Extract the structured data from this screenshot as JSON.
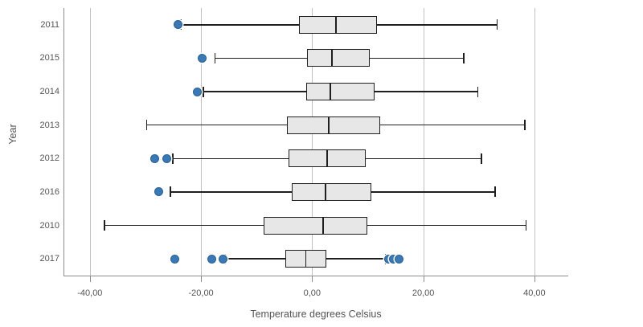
{
  "chart_data": {
    "type": "boxplot",
    "orientation": "horizontal",
    "title": "",
    "xlabel": "Temperature degrees Celsius",
    "ylabel": "Year",
    "grid": true,
    "xlim": [
      -44.7,
      46.1
    ],
    "x_ticks": [
      {
        "value": -40,
        "label": "-40,00"
      },
      {
        "value": -20,
        "label": "-20,00"
      },
      {
        "value": 0,
        "label": "0,00"
      },
      {
        "value": 20,
        "label": "20,00"
      },
      {
        "value": 40,
        "label": "40,00"
      }
    ],
    "categories": [
      "2011",
      "2015",
      "2014",
      "2013",
      "2012",
      "2016",
      "2010",
      "2017"
    ],
    "series": [
      {
        "category": "2011",
        "low": -23.6,
        "q1": -2.4,
        "median": 4.3,
        "q3": 11.7,
        "high": 33.3,
        "outliers": [
          -24.1
        ]
      },
      {
        "category": "2015",
        "low": -17.5,
        "q1": -0.9,
        "median": 3.6,
        "q3": 10.3,
        "high": 27.3,
        "outliers": [
          -19.8
        ]
      },
      {
        "category": "2014",
        "low": -19.6,
        "q1": -1.1,
        "median": 3.3,
        "q3": 11.2,
        "high": 29.8,
        "outliers": [
          -20.6
        ]
      },
      {
        "category": "2013",
        "low": -29.8,
        "q1": -4.5,
        "median": 3.0,
        "q3": 12.3,
        "high": 38.3,
        "outliers": []
      },
      {
        "category": "2012",
        "low": -25.1,
        "q1": -4.2,
        "median": 2.7,
        "q3": 9.7,
        "high": 30.5,
        "outliers": [
          -28.3,
          -26.1
        ]
      },
      {
        "category": "2016",
        "low": -25.5,
        "q1": -3.7,
        "median": 2.4,
        "q3": 10.7,
        "high": 32.9,
        "outliers": [
          -27.6
        ]
      },
      {
        "category": "2010",
        "low": -37.4,
        "q1": -8.8,
        "median": 2.0,
        "q3": 10.0,
        "high": 38.5,
        "outliers": []
      },
      {
        "category": "2017",
        "low": -15.7,
        "q1": -4.8,
        "median": -1.1,
        "q3": 2.6,
        "high": 13.2,
        "outliers": [
          -24.7,
          -18.0,
          -16.1,
          13.7,
          14.7,
          15.7
        ]
      }
    ],
    "colors": {
      "box_fill": "#e7e7e7",
      "box_stroke": "#1f1f1f",
      "whisker": "#1f1f1f",
      "outlier_fill": "#3a79b5",
      "outlier_stroke": "#29618f",
      "gridline": "#c2c2c2",
      "axis_line": "#8c8c8c",
      "text": "#545454"
    }
  }
}
